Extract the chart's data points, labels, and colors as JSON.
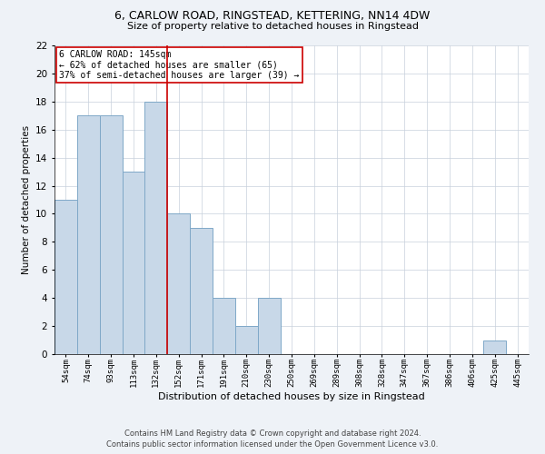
{
  "title1": "6, CARLOW ROAD, RINGSTEAD, KETTERING, NN14 4DW",
  "title2": "Size of property relative to detached houses in Ringstead",
  "xlabel": "Distribution of detached houses by size in Ringstead",
  "ylabel": "Number of detached properties",
  "categories": [
    "54sqm",
    "74sqm",
    "93sqm",
    "113sqm",
    "132sqm",
    "152sqm",
    "171sqm",
    "191sqm",
    "210sqm",
    "230sqm",
    "250sqm",
    "269sqm",
    "289sqm",
    "308sqm",
    "328sqm",
    "347sqm",
    "367sqm",
    "386sqm",
    "406sqm",
    "425sqm",
    "445sqm"
  ],
  "values": [
    11,
    17,
    17,
    13,
    18,
    10,
    9,
    4,
    2,
    4,
    0,
    0,
    0,
    0,
    0,
    0,
    0,
    0,
    0,
    1,
    0
  ],
  "bar_color": "#c8d8e8",
  "bar_edge_color": "#7fa8c8",
  "red_line_index": 4.5,
  "ylim": [
    0,
    22
  ],
  "yticks": [
    0,
    2,
    4,
    6,
    8,
    10,
    12,
    14,
    16,
    18,
    20,
    22
  ],
  "annotation_line1": "6 CARLOW ROAD: 145sqm",
  "annotation_line2": "← 62% of detached houses are smaller (65)",
  "annotation_line3": "37% of semi-detached houses are larger (39) →",
  "annotation_box_color": "#cc0000",
  "footer_line1": "Contains HM Land Registry data © Crown copyright and database right 2024.",
  "footer_line2": "Contains public sector information licensed under the Open Government Licence v3.0.",
  "background_color": "#eef2f7",
  "plot_bg_color": "#ffffff",
  "grid_color": "#c8d0dc"
}
